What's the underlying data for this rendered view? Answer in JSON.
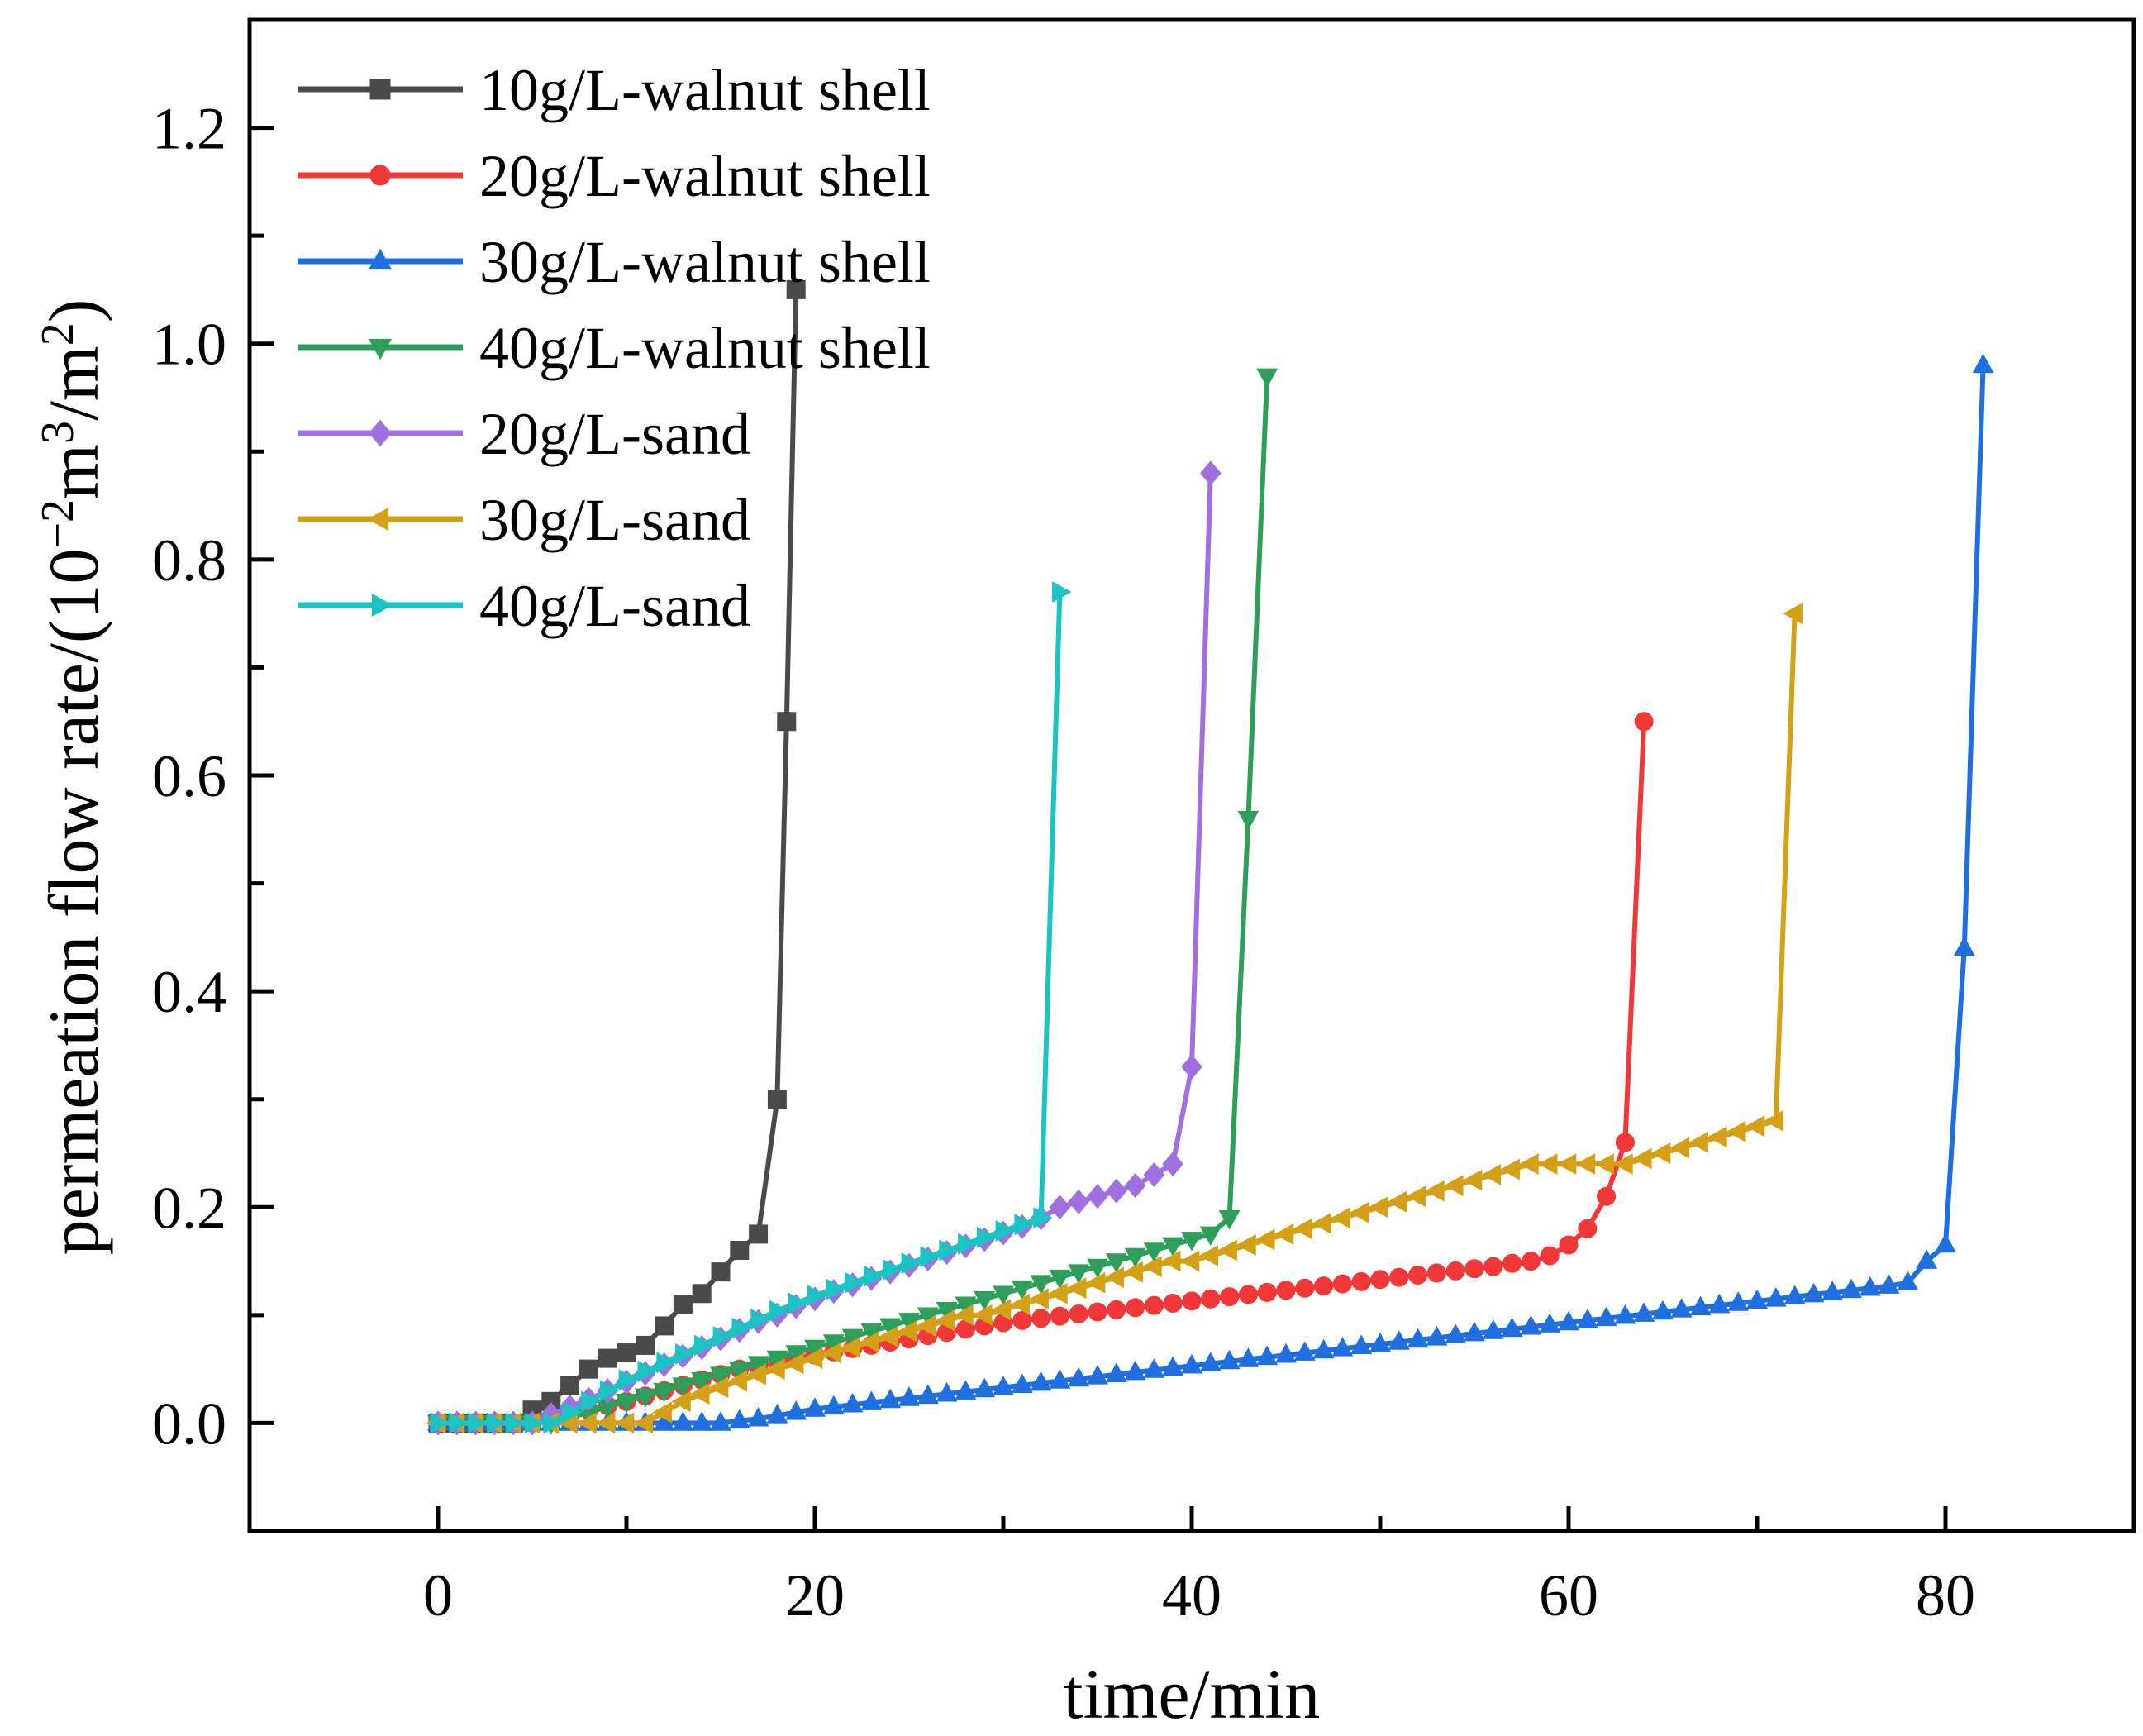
{
  "chart_data": {
    "type": "line",
    "xlabel": "time/min",
    "ylabel": {
      "base": "permeation flow rate/(10",
      "exp1": "−2",
      "mid": "m",
      "exp2": "3",
      "mid2": "/m",
      "exp3": "2",
      "end": ")"
    },
    "xlim": [
      -10,
      90
    ],
    "ylim": [
      -0.1,
      1.3
    ],
    "xticks": [
      0,
      20,
      40,
      60,
      80
    ],
    "xtick_labels": [
      "0",
      "20",
      "40",
      "60",
      "80"
    ],
    "yticks": [
      0.0,
      0.2,
      0.4,
      0.6,
      0.8,
      1.0,
      1.2
    ],
    "ytick_labels": [
      "0.0",
      "0.2",
      "0.4",
      "0.6",
      "0.8",
      "1.0",
      "1.2"
    ],
    "legend_position": "top-left",
    "series": [
      {
        "name": "10g/L-walnut shell",
        "color": "#4a4a4a",
        "marker": "square",
        "x": [
          0,
          1,
          2,
          3,
          4,
          5,
          6,
          7,
          8,
          9,
          10,
          11,
          12,
          13,
          14,
          15,
          16,
          17,
          18,
          18.5,
          19
        ],
        "y": [
          0,
          0,
          0,
          0,
          0,
          0.012,
          0.02,
          0.035,
          0.05,
          0.06,
          0.065,
          0.072,
          0.09,
          0.11,
          0.12,
          0.14,
          0.16,
          0.175,
          0.3,
          0.65,
          1.05
        ]
      },
      {
        "name": "20g/L-walnut shell",
        "color": "#f03838",
        "marker": "circle",
        "x": [
          0,
          1,
          2,
          3,
          4,
          5,
          6,
          7,
          8,
          9,
          10,
          11,
          12,
          13,
          14,
          15,
          16,
          17,
          18,
          19,
          20,
          21,
          22,
          23,
          24,
          25,
          26,
          27,
          28,
          29,
          30,
          31,
          32,
          33,
          34,
          35,
          36,
          37,
          38,
          39,
          40,
          41,
          42,
          43,
          44,
          45,
          46,
          47,
          48,
          49,
          50,
          51,
          52,
          53,
          54,
          55,
          56,
          57,
          58,
          59,
          60,
          61,
          62,
          63,
          64
        ],
        "y": [
          0,
          0,
          0,
          0,
          0,
          0,
          0.004,
          0.008,
          0.012,
          0.016,
          0.02,
          0.025,
          0.03,
          0.035,
          0.04,
          0.045,
          0.05,
          0.053,
          0.056,
          0.06,
          0.063,
          0.066,
          0.069,
          0.072,
          0.075,
          0.078,
          0.081,
          0.084,
          0.087,
          0.09,
          0.093,
          0.095,
          0.097,
          0.099,
          0.101,
          0.103,
          0.105,
          0.107,
          0.109,
          0.111,
          0.113,
          0.115,
          0.117,
          0.119,
          0.121,
          0.123,
          0.125,
          0.127,
          0.129,
          0.131,
          0.133,
          0.135,
          0.137,
          0.139,
          0.141,
          0.143,
          0.145,
          0.148,
          0.15,
          0.155,
          0.165,
          0.18,
          0.21,
          0.26,
          0.65
        ]
      },
      {
        "name": "30g/L-walnut shell",
        "color": "#1f6fe0",
        "marker": "triangle-up",
        "x": [
          0,
          1,
          2,
          3,
          4,
          5,
          6,
          7,
          8,
          9,
          10,
          11,
          12,
          13,
          14,
          15,
          16,
          17,
          18,
          19,
          20,
          21,
          22,
          23,
          24,
          25,
          26,
          27,
          28,
          29,
          30,
          31,
          32,
          33,
          34,
          35,
          36,
          37,
          38,
          39,
          40,
          41,
          42,
          43,
          44,
          45,
          46,
          47,
          48,
          49,
          50,
          51,
          52,
          53,
          54,
          55,
          56,
          57,
          58,
          59,
          60,
          61,
          62,
          63,
          64,
          65,
          66,
          67,
          68,
          69,
          70,
          71,
          72,
          73,
          74,
          75,
          76,
          77,
          78,
          79,
          80,
          81,
          82
        ],
        "y": [
          0,
          0,
          0,
          0,
          0,
          0,
          0,
          0,
          0,
          0,
          0,
          0,
          0,
          0,
          0,
          0,
          0.002,
          0.004,
          0.007,
          0.01,
          0.013,
          0.015,
          0.017,
          0.019,
          0.021,
          0.023,
          0.025,
          0.027,
          0.029,
          0.031,
          0.033,
          0.035,
          0.037,
          0.039,
          0.041,
          0.043,
          0.045,
          0.047,
          0.049,
          0.051,
          0.053,
          0.055,
          0.057,
          0.059,
          0.061,
          0.063,
          0.065,
          0.067,
          0.069,
          0.071,
          0.073,
          0.075,
          0.077,
          0.079,
          0.081,
          0.083,
          0.085,
          0.087,
          0.089,
          0.091,
          0.093,
          0.095,
          0.097,
          0.099,
          0.101,
          0.103,
          0.105,
          0.107,
          0.109,
          0.111,
          0.113,
          0.115,
          0.117,
          0.119,
          0.121,
          0.123,
          0.125,
          0.127,
          0.13,
          0.15,
          0.165,
          0.44,
          0.98
        ]
      },
      {
        "name": "40g/L-walnut shell",
        "color": "#2e9e5b",
        "marker": "triangle-down",
        "x": [
          0,
          1,
          2,
          3,
          4,
          5,
          6,
          7,
          8,
          9,
          10,
          11,
          12,
          13,
          14,
          15,
          16,
          17,
          18,
          19,
          20,
          21,
          22,
          23,
          24,
          25,
          26,
          27,
          28,
          29,
          30,
          31,
          32,
          33,
          34,
          35,
          36,
          37,
          38,
          39,
          40,
          41,
          42,
          43,
          44
        ],
        "y": [
          0,
          0,
          0,
          0,
          0,
          0,
          0,
          0.005,
          0.01,
          0.015,
          0.02,
          0.025,
          0.03,
          0.035,
          0.04,
          0.045,
          0.05,
          0.055,
          0.06,
          0.065,
          0.07,
          0.075,
          0.08,
          0.085,
          0.09,
          0.095,
          0.1,
          0.105,
          0.11,
          0.115,
          0.12,
          0.125,
          0.13,
          0.135,
          0.14,
          0.145,
          0.15,
          0.155,
          0.16,
          0.165,
          0.17,
          0.175,
          0.19,
          0.56,
          0.97
        ]
      },
      {
        "name": "20g/L-sand",
        "color": "#a070e0",
        "marker": "diamond",
        "x": [
          0,
          1,
          2,
          3,
          4,
          5,
          6,
          7,
          8,
          9,
          10,
          11,
          12,
          13,
          14,
          15,
          16,
          17,
          18,
          19,
          20,
          21,
          22,
          23,
          24,
          25,
          26,
          27,
          28,
          29,
          30,
          31,
          32,
          33,
          34,
          35,
          36,
          37,
          38,
          39,
          40,
          41
        ],
        "y": [
          0,
          0,
          0,
          0,
          0,
          0,
          0.008,
          0.015,
          0.022,
          0.03,
          0.038,
          0.046,
          0.054,
          0.062,
          0.07,
          0.078,
          0.086,
          0.094,
          0.1,
          0.108,
          0.115,
          0.122,
          0.128,
          0.134,
          0.14,
          0.146,
          0.152,
          0.158,
          0.164,
          0.17,
          0.176,
          0.182,
          0.19,
          0.2,
          0.205,
          0.21,
          0.215,
          0.22,
          0.23,
          0.24,
          0.33,
          0.88
        ]
      },
      {
        "name": "30g/L-sand",
        "color": "#d4a017",
        "marker": "triangle-left",
        "x": [
          0,
          1,
          2,
          3,
          4,
          5,
          6,
          7,
          8,
          9,
          10,
          11,
          12,
          13,
          14,
          15,
          16,
          17,
          18,
          19,
          20,
          21,
          22,
          23,
          24,
          25,
          26,
          27,
          28,
          29,
          30,
          31,
          32,
          33,
          34,
          35,
          36,
          37,
          38,
          39,
          40,
          41,
          42,
          43,
          44,
          45,
          46,
          47,
          48,
          49,
          50,
          51,
          52,
          53,
          54,
          55,
          56,
          57,
          58,
          59,
          60,
          61,
          62,
          63,
          64,
          65,
          66,
          67,
          68,
          69,
          70,
          71,
          72
        ],
        "y": [
          0,
          0,
          0,
          0,
          0,
          0,
          0,
          0,
          0,
          0,
          0,
          0,
          0.01,
          0.02,
          0.027,
          0.033,
          0.039,
          0.045,
          0.05,
          0.055,
          0.06,
          0.065,
          0.07,
          0.075,
          0.08,
          0.085,
          0.09,
          0.095,
          0.1,
          0.1,
          0.105,
          0.11,
          0.115,
          0.12,
          0.125,
          0.13,
          0.135,
          0.14,
          0.145,
          0.15,
          0.15,
          0.155,
          0.16,
          0.165,
          0.17,
          0.175,
          0.18,
          0.185,
          0.19,
          0.195,
          0.2,
          0.205,
          0.21,
          0.215,
          0.22,
          0.225,
          0.23,
          0.235,
          0.24,
          0.24,
          0.24,
          0.24,
          0.24,
          0.24,
          0.245,
          0.25,
          0.255,
          0.26,
          0.265,
          0.27,
          0.275,
          0.28,
          0.75
        ]
      },
      {
        "name": "40g/L-sand",
        "color": "#1cc3c3",
        "marker": "triangle-right",
        "x": [
          0,
          1,
          2,
          3,
          4,
          5,
          6,
          7,
          8,
          9,
          10,
          11,
          12,
          13,
          14,
          15,
          16,
          17,
          18,
          19,
          20,
          21,
          22,
          23,
          24,
          25,
          26,
          27,
          28,
          29,
          30,
          31,
          32,
          33
        ],
        "y": [
          0,
          0,
          0,
          0,
          0,
          0,
          0,
          0.01,
          0.02,
          0.03,
          0.04,
          0.048,
          0.056,
          0.064,
          0.072,
          0.08,
          0.088,
          0.096,
          0.104,
          0.111,
          0.118,
          0.124,
          0.13,
          0.136,
          0.142,
          0.148,
          0.154,
          0.16,
          0.166,
          0.172,
          0.178,
          0.184,
          0.19,
          0.77
        ]
      }
    ]
  }
}
